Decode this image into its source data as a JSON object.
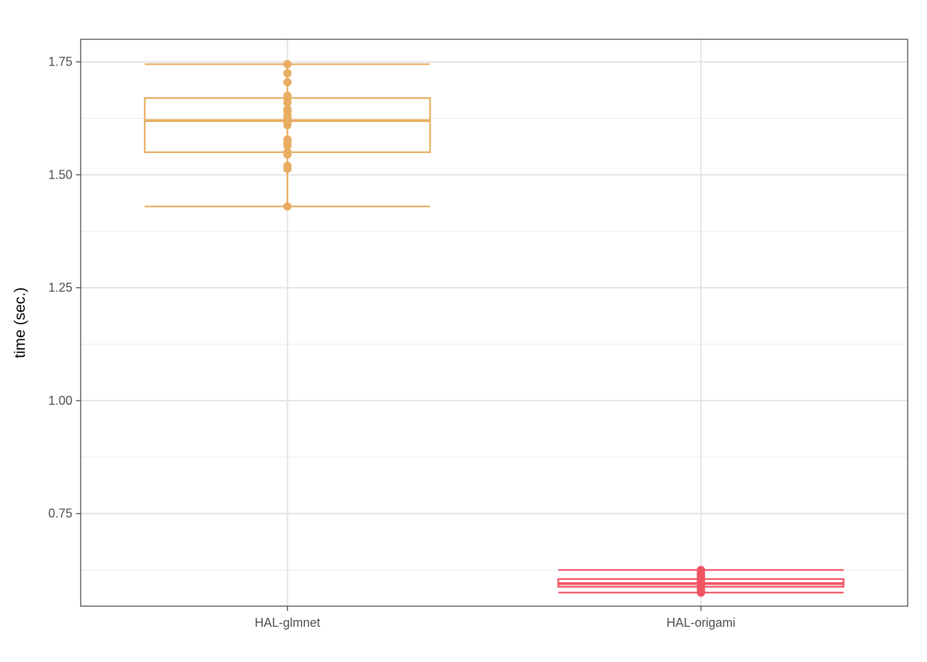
{
  "chart_data": {
    "type": "boxplot",
    "title": "",
    "xlabel": "",
    "ylabel": "time (sec.)",
    "ylim": [
      0.545,
      1.8
    ],
    "y_ticks": [
      0.75,
      1.0,
      1.25,
      1.5,
      1.75
    ],
    "y_tick_labels": [
      "0.75",
      "1.00",
      "1.25",
      "1.50",
      "1.75"
    ],
    "categories": [
      "HAL-glmnet",
      "HAL-origami"
    ],
    "grid": true,
    "legend": "none",
    "boxes": [
      {
        "category": "HAL-glmnet",
        "color": "#E8AD62",
        "min": 1.43,
        "q1": 1.55,
        "median": 1.62,
        "q3": 1.67,
        "max": 1.745,
        "points": [
          1.43,
          1.513,
          1.52,
          1.545,
          1.55,
          1.565,
          1.572,
          1.578,
          1.61,
          1.615,
          1.622,
          1.63,
          1.64,
          1.645,
          1.66,
          1.67,
          1.675,
          1.705,
          1.725,
          1.745
        ]
      },
      {
        "category": "HAL-origami",
        "color": "#F05463",
        "min": 0.575,
        "q1": 0.588,
        "median": 0.595,
        "q3": 0.605,
        "max": 0.625,
        "points": [
          0.575,
          0.578,
          0.582,
          0.586,
          0.59,
          0.593,
          0.596,
          0.6,
          0.605,
          0.61,
          0.615,
          0.62,
          0.625
        ]
      }
    ]
  }
}
